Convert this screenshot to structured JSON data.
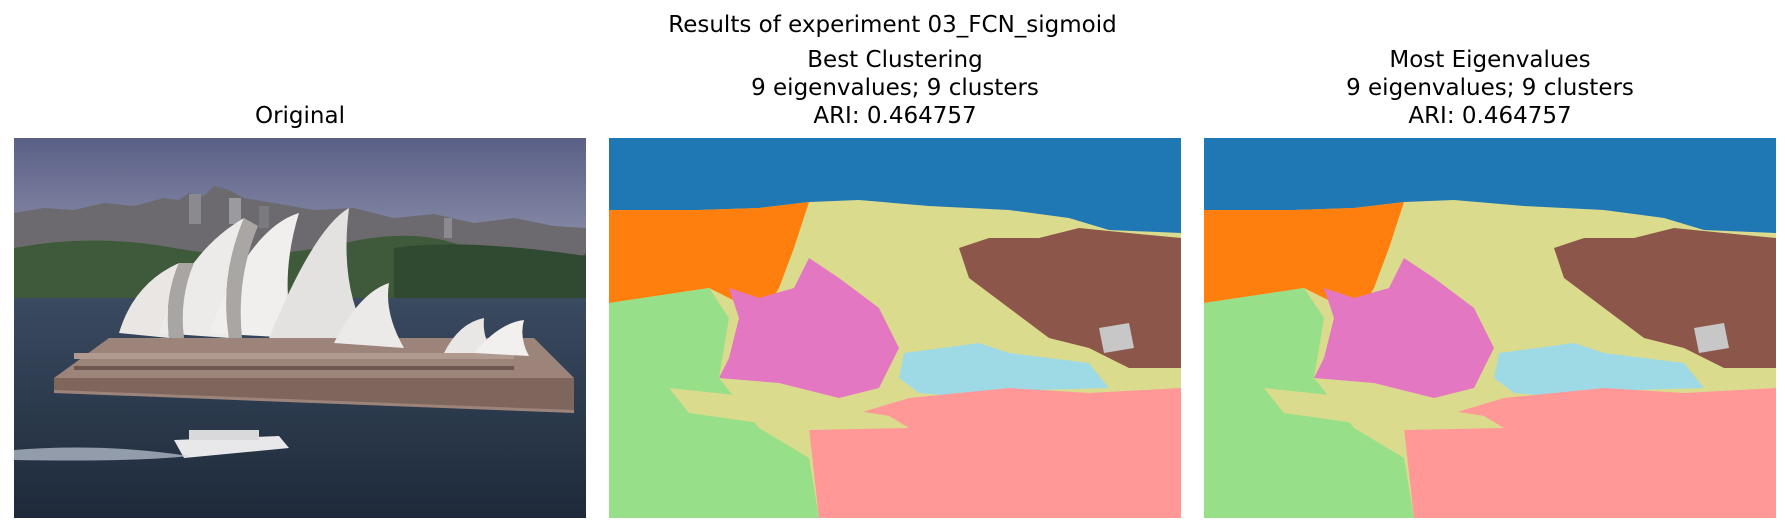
{
  "figure": {
    "suptitle": "Results of experiment 03_FCN_sigmoid",
    "panels": [
      {
        "title_lines": [
          "Original"
        ]
      },
      {
        "title_lines": [
          "Best Clustering",
          "9 eigenvalues; 9 clusters",
          "ARI: 0.464757"
        ]
      },
      {
        "title_lines": [
          "Most Eigenvalues",
          "9 eigenvalues; 9 clusters",
          "ARI: 0.464757"
        ]
      }
    ]
  },
  "colors": {
    "sky_cluster": "#1f77b4",
    "orange_cluster": "#ff7f0e",
    "green_cluster": "#98df8a",
    "pink_cluster": "#e377c2",
    "brown_cluster": "#8c564b",
    "gray_cluster": "#c7c7c7",
    "cyan_cluster": "#9edae5",
    "salmon_cluster": "#ff9896",
    "olive_cluster": "#dbdb8d"
  }
}
